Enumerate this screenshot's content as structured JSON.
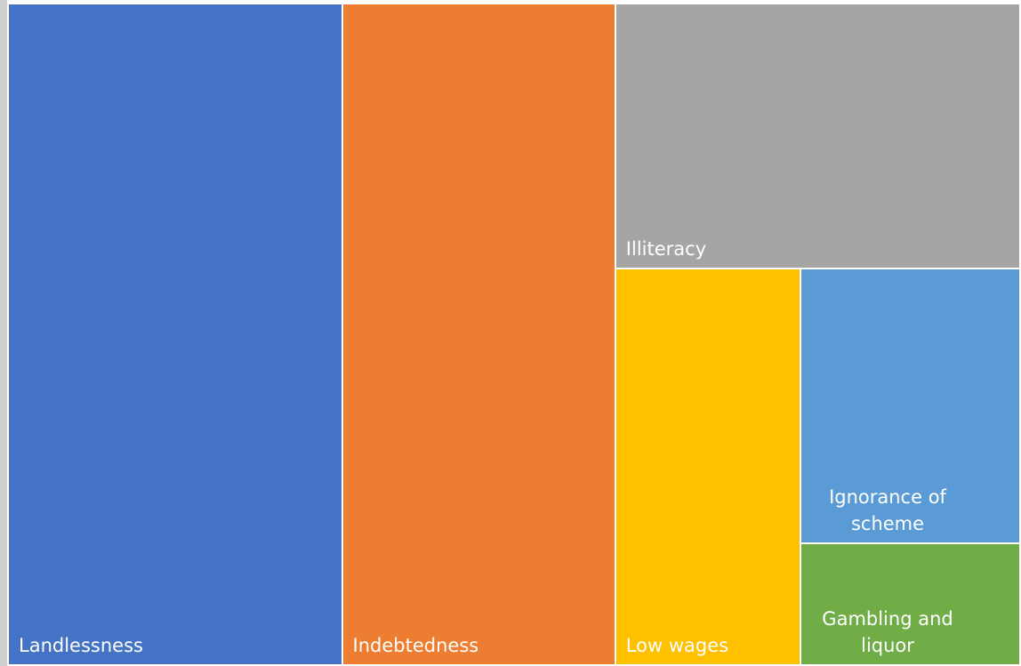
{
  "chart_data": {
    "type": "treemap",
    "categories": [
      "Landlessness",
      "Indebtedness",
      "Illiteracy",
      "Low wages",
      "Ignorance of scheme",
      "Gambling and liquor"
    ],
    "values": [
      33,
      27,
      16,
      11,
      9,
      4
    ],
    "colors": [
      "#4472c4",
      "#ed7d31",
      "#a5a5a5",
      "#ffc000",
      "#5b9bd5",
      "#70ad47"
    ]
  }
}
